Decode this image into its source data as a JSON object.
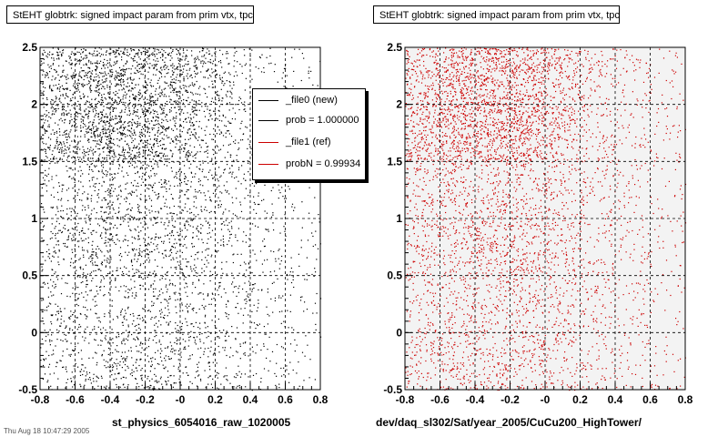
{
  "chart_data": [
    {
      "type": "scatter",
      "title": "StEHT globtrk: signed impact param from prim vtx, tpc",
      "xlabel": "st_physics_6054016_raw_1020005",
      "ylabel": "",
      "xlim": [
        -0.8,
        0.8
      ],
      "ylim": [
        -0.5,
        2.5
      ],
      "xticks": [
        "-0.8",
        "-0.6",
        "-0.4",
        "-0.2",
        "-0",
        "0.2",
        "0.4",
        "0.6",
        "0.8"
      ],
      "yticks": [
        "-0.5",
        "0",
        "0.5",
        "1",
        "1.5",
        "2",
        "2.5"
      ],
      "grid": true,
      "marker_color": "#000000",
      "density": [
        {
          "y": [
            1.5,
            2.5
          ],
          "x_center": -0.35,
          "level": "dense"
        },
        {
          "y": [
            -0.5,
            1.5
          ],
          "x_center": -0.3,
          "level": "sparse"
        }
      ],
      "legend": {
        "placement": "top-right",
        "entries": [
          {
            "label": "_file0 (new)",
            "color": "#000000"
          },
          {
            "label": "prob = 1.000000",
            "color": "#000000"
          },
          {
            "label": "_file1 (ref)",
            "color": "#cc0000"
          },
          {
            "label": "probN = 0.99934",
            "color": "#cc0000"
          }
        ]
      }
    },
    {
      "type": "scatter",
      "title": "StEHT globtrk: signed impact param from prim vtx, tpc",
      "xlabel": "dev/daq_sl302/Sat/year_2005/CuCu200_HighTower/",
      "ylabel": "",
      "xlim": [
        -0.8,
        0.8
      ],
      "ylim": [
        -0.5,
        2.5
      ],
      "xticks": [
        "-0.8",
        "-0.6",
        "-0.4",
        "-0.2",
        "-0",
        "0.2",
        "0.4",
        "0.6",
        "0.8"
      ],
      "yticks": [
        "-0.5",
        "0",
        "0.5",
        "1",
        "1.5",
        "2",
        "2.5"
      ],
      "grid": true,
      "marker_color": "#cc0000",
      "density": [
        {
          "y": [
            1.5,
            2.5
          ],
          "x_center": -0.35,
          "level": "dense"
        },
        {
          "y": [
            -0.5,
            1.5
          ],
          "x_center": -0.3,
          "level": "sparse"
        }
      ]
    }
  ],
  "footer": "Thu Aug 18 10:47:29 2005"
}
